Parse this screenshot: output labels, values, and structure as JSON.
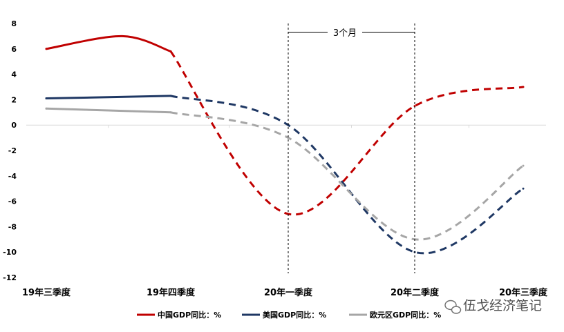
{
  "chart_data": {
    "type": "line",
    "title": "",
    "xlabel": "",
    "ylabel": "",
    "categories": [
      "19年三季度",
      "19年四季度",
      "20年一季度",
      "20年二季度",
      "20年三季度"
    ],
    "ylim": [
      -12,
      8
    ],
    "yticks": [
      8,
      6,
      4,
      2,
      0,
      -2,
      -4,
      -6,
      -8,
      -10,
      -12
    ],
    "grid": false,
    "legend_position": "bottom",
    "series": [
      {
        "name": "中国GDP同比：%",
        "color": "#C00000",
        "values": [
          6.0,
          5.8,
          -7.0,
          1.5,
          3.0
        ],
        "peak_between_q3_q4": 7.0,
        "solid_until_index": 1
      },
      {
        "name": "美国GDP同比：%",
        "color": "#1F3864",
        "values": [
          2.1,
          2.3,
          0.0,
          -10.0,
          -5.0
        ],
        "solid_until_index": 1
      },
      {
        "name": "欧元区GDP同比：%",
        "color": "#A6A6A6",
        "values": [
          1.3,
          1.0,
          -1.0,
          -9.0,
          -3.2
        ],
        "solid_until_index": 1
      }
    ],
    "annotations": [
      {
        "text": "3个月",
        "from_category": "20年一季度",
        "to_category": "20年二季度"
      }
    ]
  },
  "watermark": {
    "text": "伍戈经济笔记",
    "icon": "wechat-icon"
  }
}
